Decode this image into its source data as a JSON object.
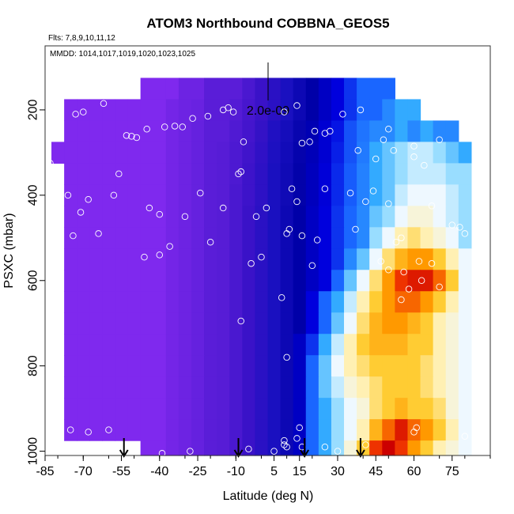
{
  "chart_data": {
    "type": "heatmap",
    "title": "ATOM3 Northbound COBBNA_GEOS5",
    "flights_label": "Flts: 7,8,9,10,11,12",
    "dates_label": "MMDD: 1014,1017,1019,1020,1023,1025",
    "scale_label": "2.0e-09",
    "xlabel": "Latitude (deg N)",
    "ylabel": "PSXC (mbar)",
    "xlim": [
      -85,
      90
    ],
    "ylim": [
      1010,
      50
    ],
    "y_reversed": true,
    "x_ticks": [
      "-85",
      "-70",
      "-55",
      "-40",
      "-25",
      "-10",
      "5",
      "15",
      "30",
      "45",
      "60",
      "75"
    ],
    "x_tick_values": [
      -85,
      -70,
      -55,
      -40,
      -25,
      -10,
      5,
      15,
      30,
      45,
      60,
      75
    ],
    "y_ticks": [
      "200",
      "400",
      "600",
      "800",
      "1000"
    ],
    "y_tick_values": [
      200,
      400,
      600,
      800,
      1000
    ],
    "pressure_levels": [
      150,
      200,
      250,
      300,
      350,
      400,
      450,
      500,
      550,
      600,
      650,
      700,
      750,
      800,
      850,
      900,
      950,
      1000
    ],
    "lat_bins": [
      -80,
      -75,
      -70,
      -65,
      -60,
      -55,
      -50,
      -45,
      -40,
      -35,
      -30,
      -25,
      -20,
      -15,
      -10,
      -5,
      0,
      5,
      10,
      15,
      20,
      25,
      30,
      35,
      40,
      45,
      50,
      55,
      60,
      65,
      70,
      75,
      80
    ],
    "color_scale": [
      "#7f29ee",
      "#5a1dd8",
      "#3a12c8",
      "#1a10c0",
      "#0000a8",
      "#0000dd",
      "#1a66ff",
      "#33aaff",
      "#99ddff",
      "#eef8ff",
      "#fff0b3",
      "#ffcc33",
      "#ff9900",
      "#ee3300",
      "#cc0000"
    ],
    "value_grid": [
      [
        null,
        null,
        null,
        null,
        null,
        null,
        null,
        0,
        0,
        0,
        0.5,
        0.5,
        1,
        1,
        1,
        1.5,
        2,
        2.5,
        3,
        3.5,
        4,
        4.5,
        5,
        5.5,
        6,
        6,
        6,
        null,
        null,
        null,
        null,
        null,
        null
      ],
      [
        null,
        0,
        0,
        0,
        0,
        0,
        0,
        0,
        0,
        0.3,
        0.5,
        0.6,
        1,
        1,
        1.2,
        1.6,
        2,
        2.5,
        3,
        3.5,
        4,
        4.5,
        5,
        5.5,
        6,
        6,
        6.5,
        7,
        7,
        null,
        null,
        null,
        null
      ],
      [
        null,
        0,
        0,
        0,
        0,
        0,
        0,
        0,
        0,
        0.3,
        0.5,
        0.7,
        1,
        1,
        1.3,
        1.7,
        2.2,
        2.8,
        3.2,
        3.7,
        4.2,
        4.8,
        5.2,
        5.8,
        6.2,
        6.5,
        6.5,
        7,
        6.5,
        7,
        6.5,
        6.5,
        null
      ],
      [
        0,
        0,
        0,
        0,
        0,
        0,
        0,
        0,
        0,
        0.3,
        0.5,
        0.7,
        1,
        1.1,
        1.4,
        1.8,
        2.3,
        2.9,
        3.3,
        3.8,
        4.3,
        4.8,
        5.3,
        5.8,
        6.3,
        7,
        7.5,
        8,
        8.5,
        8.5,
        8,
        7.5,
        7
      ],
      [
        null,
        0,
        0,
        0,
        0,
        0,
        0,
        0,
        0,
        0.3,
        0.5,
        0.7,
        1,
        1.1,
        1.4,
        1.9,
        2.4,
        3,
        3.4,
        3.9,
        4.4,
        4.9,
        5.4,
        5.9,
        6.4,
        7,
        7.5,
        8,
        8.5,
        8.5,
        8.5,
        8,
        8
      ],
      [
        null,
        0,
        0,
        0,
        0,
        0,
        0,
        0,
        0,
        0.3,
        0.5,
        0.7,
        1,
        1.1,
        1.5,
        1.9,
        2.4,
        3,
        3.4,
        3.9,
        4.4,
        4.9,
        5.4,
        5.9,
        6.4,
        7,
        7.5,
        8.5,
        9,
        9,
        9,
        8.5,
        8
      ],
      [
        null,
        0,
        0,
        0,
        0,
        0,
        0,
        0,
        0,
        0.3,
        0.5,
        0.7,
        1,
        1.1,
        1.5,
        2,
        2.5,
        3,
        3.5,
        4,
        4.5,
        5,
        5.5,
        6,
        6.5,
        7.5,
        8,
        9,
        9.5,
        9.5,
        9,
        8.5,
        8
      ],
      [
        null,
        0,
        0,
        0,
        0,
        0,
        0,
        0,
        0,
        0.3,
        0.5,
        0.7,
        1,
        1.1,
        1.5,
        2,
        2.5,
        3,
        3.5,
        4,
        4.5,
        5,
        5.5,
        6,
        6.5,
        8,
        9,
        10,
        10.5,
        10,
        9.5,
        9,
        8
      ],
      [
        null,
        0,
        0,
        0,
        0,
        0,
        0,
        0,
        0,
        0.3,
        0.5,
        0.7,
        1,
        1.1,
        1.5,
        2,
        2.5,
        3,
        3.5,
        4,
        4.5,
        5,
        5.5,
        6.5,
        7.5,
        9,
        10.5,
        11.5,
        12,
        12,
        11,
        10,
        9
      ],
      [
        null,
        0,
        0,
        0,
        0,
        0,
        0,
        0,
        0,
        0.3,
        0.5,
        0.7,
        1,
        1.1,
        1.5,
        2,
        2.5,
        3,
        3.5,
        4,
        4.5,
        5,
        6,
        7.5,
        9,
        10.5,
        12,
        13,
        13.5,
        13.5,
        12.5,
        11,
        9
      ],
      [
        null,
        0,
        0,
        0,
        0,
        0,
        0,
        0,
        0,
        0.3,
        0.5,
        0.7,
        1,
        1.1,
        1.5,
        2,
        2.5,
        3,
        3.5,
        4,
        5,
        6,
        7,
        8.5,
        10,
        11,
        12,
        12.5,
        12.5,
        12,
        11,
        10,
        9
      ],
      [
        null,
        0,
        0,
        0,
        0,
        0,
        0,
        0,
        0,
        0.3,
        0.5,
        0.7,
        1,
        1.1,
        1.5,
        2,
        2.5,
        3,
        3.5,
        4,
        5,
        6,
        7.5,
        9,
        10.5,
        11.5,
        12,
        12,
        11.5,
        11,
        10,
        9.5,
        9
      ],
      [
        null,
        0,
        0,
        0,
        0,
        0,
        0,
        0,
        0,
        0.3,
        0.5,
        0.7,
        1,
        1.1,
        1.5,
        2,
        2.5,
        3,
        3.5,
        4.5,
        5.5,
        7,
        8.5,
        10,
        11,
        11.5,
        11.5,
        11.5,
        11,
        11,
        10,
        9.5,
        9
      ],
      [
        null,
        0,
        0,
        0,
        0,
        0,
        0,
        0,
        0,
        0.3,
        0.5,
        0.7,
        1,
        1.1,
        1.5,
        2,
        2.5,
        3,
        3.5,
        4.5,
        6,
        7.5,
        9,
        10,
        10.5,
        11,
        11,
        11,
        11,
        10.5,
        10,
        9.5,
        9
      ],
      [
        null,
        0,
        0,
        0,
        0,
        0,
        0,
        0,
        0,
        0.3,
        0.5,
        0.7,
        1,
        1.1,
        1.5,
        2,
        2.5,
        3,
        3.5,
        4.5,
        6,
        7.5,
        8.5,
        9.5,
        10,
        10.5,
        11,
        11,
        11,
        10.5,
        10,
        9.5,
        9
      ],
      [
        null,
        0,
        0,
        0,
        0,
        0,
        0,
        0,
        0,
        0.3,
        0.5,
        0.7,
        1,
        1.1,
        1.5,
        2,
        2.5,
        3,
        3.5,
        4.5,
        6,
        7,
        8,
        9,
        9.5,
        10.5,
        11,
        11.5,
        11,
        11,
        10.5,
        9.5,
        9
      ],
      [
        null,
        0,
        0,
        0,
        0,
        0,
        0,
        0,
        0,
        0.3,
        0.5,
        0.7,
        1,
        1.1,
        1.5,
        2,
        2.5,
        3,
        3.5,
        4.5,
        6,
        7,
        8,
        9,
        10,
        11.5,
        12.5,
        13.5,
        12.5,
        12,
        11,
        10,
        9
      ],
      [
        null,
        null,
        null,
        null,
        null,
        null,
        null,
        0,
        0,
        0.3,
        0.5,
        0.7,
        1,
        1.1,
        1.5,
        2,
        2.5,
        3,
        3.5,
        4.5,
        6,
        7,
        8,
        9.5,
        11,
        13,
        14,
        13,
        12,
        11,
        10,
        9.5,
        9
      ]
    ],
    "observations": [
      {
        "x": -80,
        "y": 215
      },
      {
        "x": -83,
        "y": 325
      },
      {
        "x": -70,
        "y": 205
      },
      {
        "x": -73,
        "y": 210
      },
      {
        "x": -76,
        "y": 400
      },
      {
        "x": -71,
        "y": 440
      },
      {
        "x": -68,
        "y": 410
      },
      {
        "x": -74,
        "y": 495
      },
      {
        "x": -64,
        "y": 490
      },
      {
        "x": -58,
        "y": 400
      },
      {
        "x": -62,
        "y": 185
      },
      {
        "x": -56,
        "y": 350
      },
      {
        "x": -53,
        "y": 260
      },
      {
        "x": -51,
        "y": 262
      },
      {
        "x": -49,
        "y": 265
      },
      {
        "x": -45,
        "y": 245
      },
      {
        "x": -44,
        "y": 430
      },
      {
        "x": -40,
        "y": 445
      },
      {
        "x": -38,
        "y": 240
      },
      {
        "x": -34,
        "y": 238
      },
      {
        "x": -31,
        "y": 240
      },
      {
        "x": -27,
        "y": 220
      },
      {
        "x": -36,
        "y": 520
      },
      {
        "x": -40,
        "y": 540
      },
      {
        "x": -46,
        "y": 545
      },
      {
        "x": -30,
        "y": 450
      },
      {
        "x": -21,
        "y": 215
      },
      {
        "x": -15,
        "y": 200
      },
      {
        "x": -13,
        "y": 195
      },
      {
        "x": -11,
        "y": 205
      },
      {
        "x": -24,
        "y": 395
      },
      {
        "x": -20,
        "y": 510
      },
      {
        "x": -15,
        "y": 430
      },
      {
        "x": -8,
        "y": 345
      },
      {
        "x": -7,
        "y": 275
      },
      {
        "x": -9,
        "y": 350
      },
      {
        "x": -4,
        "y": 560
      },
      {
        "x": -2,
        "y": 450
      },
      {
        "x": 0,
        "y": 545
      },
      {
        "x": 2,
        "y": 430
      },
      {
        "x": -8,
        "y": 695
      },
      {
        "x": 9,
        "y": 205
      },
      {
        "x": 14,
        "y": 190
      },
      {
        "x": 12,
        "y": 385
      },
      {
        "x": 14,
        "y": 415
      },
      {
        "x": 10,
        "y": 490
      },
      {
        "x": 11,
        "y": 480
      },
      {
        "x": 8,
        "y": 640
      },
      {
        "x": 16,
        "y": 495
      },
      {
        "x": 16,
        "y": 278
      },
      {
        "x": 19,
        "y": 275
      },
      {
        "x": 21,
        "y": 250
      },
      {
        "x": 25,
        "y": 255
      },
      {
        "x": 27,
        "y": 250
      },
      {
        "x": 25,
        "y": 385
      },
      {
        "x": 22,
        "y": 505
      },
      {
        "x": 20,
        "y": 565
      },
      {
        "x": 32,
        "y": 210
      },
      {
        "x": 37,
        "y": 480
      },
      {
        "x": 35,
        "y": 395
      },
      {
        "x": 39,
        "y": 200
      },
      {
        "x": 41,
        "y": 415
      },
      {
        "x": 38,
        "y": 295
      },
      {
        "x": 44,
        "y": 390
      },
      {
        "x": 45,
        "y": 315
      },
      {
        "x": 50,
        "y": 245
      },
      {
        "x": 48,
        "y": 270
      },
      {
        "x": 52,
        "y": 295
      },
      {
        "x": 47,
        "y": 555
      },
      {
        "x": 50,
        "y": 575
      },
      {
        "x": 53,
        "y": 510
      },
      {
        "x": 56,
        "y": 580
      },
      {
        "x": 60,
        "y": 285
      },
      {
        "x": 60,
        "y": 310
      },
      {
        "x": 62,
        "y": 555
      },
      {
        "x": 63,
        "y": 600
      },
      {
        "x": 64,
        "y": 330
      },
      {
        "x": 67,
        "y": 560
      },
      {
        "x": 55,
        "y": 500
      },
      {
        "x": 50,
        "y": 420
      },
      {
        "x": 55,
        "y": 645
      },
      {
        "x": 58,
        "y": 620
      },
      {
        "x": 67,
        "y": 425
      },
      {
        "x": 61,
        "y": 945
      },
      {
        "x": 70,
        "y": 270
      },
      {
        "x": 70,
        "y": 615
      },
      {
        "x": 75,
        "y": 470
      },
      {
        "x": 78,
        "y": 475
      },
      {
        "x": 80,
        "y": 490
      },
      {
        "x": 80,
        "y": 965
      },
      {
        "x": -75,
        "y": 950
      },
      {
        "x": -68,
        "y": 955
      },
      {
        "x": -60,
        "y": 950
      },
      {
        "x": -39,
        "y": 1005
      },
      {
        "x": -28,
        "y": 1000
      },
      {
        "x": -5,
        "y": 995
      },
      {
        "x": 5,
        "y": 1000
      },
      {
        "x": 9,
        "y": 975
      },
      {
        "x": 9,
        "y": 985
      },
      {
        "x": 10,
        "y": 990
      },
      {
        "x": 14,
        "y": 970
      },
      {
        "x": 16,
        "y": 990
      },
      {
        "x": 25,
        "y": 990
      },
      {
        "x": 30,
        "y": 1000
      },
      {
        "x": 41,
        "y": 985
      },
      {
        "x": 15,
        "y": 945
      },
      {
        "x": 10,
        "y": 780
      },
      {
        "x": 60,
        "y": 955
      }
    ],
    "arrows": [
      -54,
      -9,
      17,
      39
    ]
  }
}
